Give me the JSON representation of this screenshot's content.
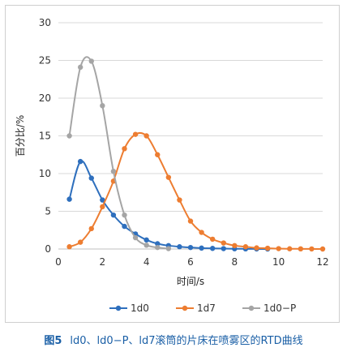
{
  "chart_data": {
    "type": "line",
    "xlabel": "时间/s",
    "ylabel": "百分比/%",
    "xlim": [
      0,
      12
    ],
    "ylim": [
      0,
      30
    ],
    "x_ticks": [
      0,
      2,
      4,
      6,
      8,
      10,
      12
    ],
    "y_ticks": [
      0,
      5,
      10,
      15,
      20,
      25,
      30
    ],
    "grid": "horizontal",
    "legend_position": "bottom",
    "series": [
      {
        "name": "1d0",
        "color": "#2e6fbd",
        "points": [
          [
            0.5,
            6.6
          ],
          [
            1.0,
            11.6
          ],
          [
            1.5,
            9.4
          ],
          [
            2.0,
            6.5
          ],
          [
            2.5,
            4.5
          ],
          [
            3.0,
            3.0
          ],
          [
            3.5,
            2.0
          ],
          [
            4.0,
            1.2
          ],
          [
            4.5,
            0.7
          ],
          [
            5.0,
            0.45
          ],
          [
            5.5,
            0.3
          ],
          [
            6.0,
            0.2
          ],
          [
            6.5,
            0.12
          ],
          [
            7.0,
            0.08
          ],
          [
            7.5,
            0.05
          ],
          [
            8.0,
            0.03
          ],
          [
            8.5,
            0.02
          ],
          [
            9.0,
            0.01
          ],
          [
            9.5,
            0.0
          ]
        ]
      },
      {
        "name": "1d7",
        "color": "#ed7d31",
        "points": [
          [
            0.5,
            0.3
          ],
          [
            1.0,
            0.9
          ],
          [
            1.5,
            2.7
          ],
          [
            2.0,
            5.6
          ],
          [
            2.5,
            9.0
          ],
          [
            3.0,
            13.3
          ],
          [
            3.5,
            15.2
          ],
          [
            4.0,
            15.0
          ],
          [
            4.5,
            12.5
          ],
          [
            5.0,
            9.5
          ],
          [
            5.5,
            6.5
          ],
          [
            6.0,
            3.7
          ],
          [
            6.5,
            2.2
          ],
          [
            7.0,
            1.3
          ],
          [
            7.5,
            0.8
          ],
          [
            8.0,
            0.45
          ],
          [
            8.5,
            0.3
          ],
          [
            9.0,
            0.15
          ],
          [
            9.5,
            0.1
          ],
          [
            10.0,
            0.05
          ],
          [
            10.5,
            0.03
          ],
          [
            11.0,
            0.02
          ],
          [
            11.5,
            0.01
          ],
          [
            12.0,
            0.0
          ]
        ]
      },
      {
        "name": "1d0−P",
        "color": "#a5a5a5",
        "points": [
          [
            0.5,
            15.0
          ],
          [
            1.0,
            24.1
          ],
          [
            1.5,
            24.9
          ],
          [
            2.0,
            19.0
          ],
          [
            2.5,
            10.3
          ],
          [
            3.0,
            4.5
          ],
          [
            3.5,
            1.5
          ],
          [
            4.0,
            0.5
          ],
          [
            4.5,
            0.2
          ],
          [
            5.0,
            0.05
          ]
        ]
      }
    ]
  },
  "caption": {
    "figure_label": "图5",
    "text": "ld0、ld0−P、ld7滚筒的片床在喷雾区的RTD曲线"
  }
}
